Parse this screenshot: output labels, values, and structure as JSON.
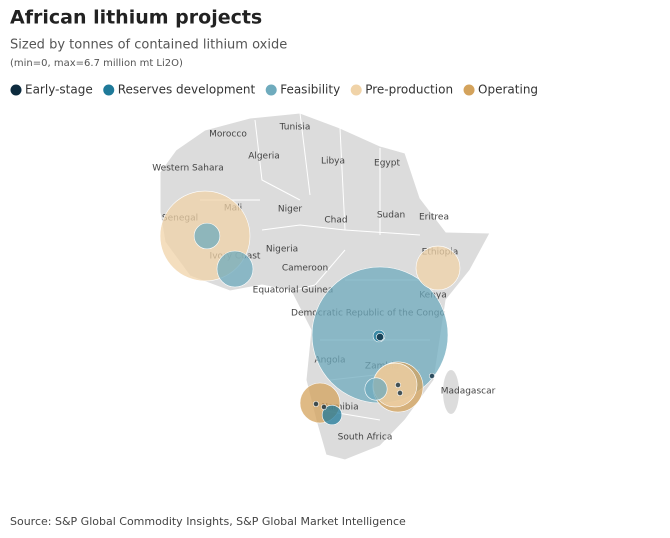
{
  "map": {
    "title": "African lithium projects",
    "subtitle": "Sized by tonnes of contained lithium oxide",
    "note": "(min=0, max=6.7 million mt Li2O)",
    "legend": [
      {
        "name": "Early-stage",
        "color": "#0d2b3e"
      },
      {
        "name": "Reserves development",
        "color": "#1f7a99"
      },
      {
        "name": "Feasibility",
        "color": "#6fabbd"
      },
      {
        "name": "Pre-production",
        "color": "#f0d3a8"
      },
      {
        "name": "Operating",
        "color": "#d4a35c"
      }
    ],
    "size_max": 6.7,
    "countries": [
      "Tunisia",
      "Morocco",
      "Algeria",
      "Libya",
      "Egypt",
      "Western Sahara",
      "Niger",
      "Mali",
      "Senegal",
      "Chad",
      "Sudan",
      "Eritrea",
      "Nigeria",
      "Ivory Coast",
      "Ethiopia",
      "Cameroon",
      "Equatorial Guinea",
      "Kenya",
      "Democratic Republic of the Congo",
      "Angola",
      "Zambia",
      "Madagascar",
      "Namibia",
      "South Africa"
    ],
    "projects": [
      {
        "stage": "Feasibility",
        "size": 6.7
      },
      {
        "stage": "Pre-production",
        "size": 2.93
      },
      {
        "stage": "Feasibility",
        "size": 0.24
      },
      {
        "stage": "Feasibility",
        "size": 0.47
      },
      {
        "stage": "Pre-production",
        "size": 0.7
      },
      {
        "stage": "Reserves development",
        "size": 0.05
      },
      {
        "stage": "Early-stage",
        "size": 0.02
      },
      {
        "stage": "Operating",
        "size": 0.91
      },
      {
        "stage": "Pre-production",
        "size": 0.7
      },
      {
        "stage": "Feasibility",
        "size": 0.18
      },
      {
        "stage": "Early-stage",
        "size": 0.01
      },
      {
        "stage": "Early-stage",
        "size": 0.01
      },
      {
        "stage": "Early-stage",
        "size": 0.01
      },
      {
        "stage": "Operating",
        "size": 0.58
      },
      {
        "stage": "Reserves development",
        "size": 0.14
      },
      {
        "stage": "Early-stage",
        "size": 0.01
      },
      {
        "stage": "Early-stage",
        "size": 0.01
      }
    ],
    "source": "Source: S&P Global Commodity Insights, S&P Global Market Intelligence"
  }
}
